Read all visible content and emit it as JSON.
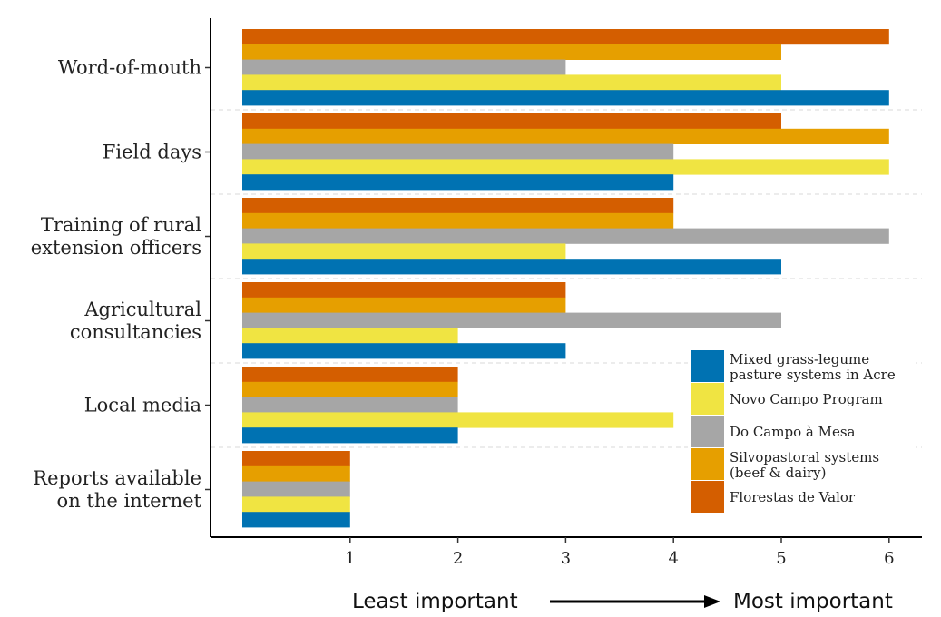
{
  "chart_data": {
    "type": "bar",
    "orientation": "horizontal",
    "categories": [
      [
        "Word-of-mouth"
      ],
      [
        "Field days"
      ],
      [
        "Training of rural",
        "extension officers"
      ],
      [
        "Agricultural",
        "consultancies"
      ],
      [
        "Local media"
      ],
      [
        "Reports available",
        "on the internet"
      ]
    ],
    "series": [
      {
        "name": [
          "Florestas de Valor"
        ],
        "color": "#D45E00",
        "values": [
          6,
          5,
          4,
          3,
          2,
          1
        ]
      },
      {
        "name": [
          "Silvopastoral systems",
          "(beef & dairy)"
        ],
        "color": "#E69F00",
        "values": [
          5,
          6,
          4,
          3,
          2,
          1
        ]
      },
      {
        "name": [
          "Do Campo à Mesa"
        ],
        "color": "#A6A6A6",
        "values": [
          3,
          4,
          6,
          5,
          2,
          1
        ]
      },
      {
        "name": [
          "Novo Campo Program"
        ],
        "color": "#F0E442",
        "values": [
          5,
          6,
          3,
          2,
          4,
          1
        ]
      },
      {
        "name": [
          "Mixed grass-legume",
          "pasture systems in Acre"
        ],
        "color": "#0072B2",
        "values": [
          6,
          4,
          5,
          3,
          2,
          1
        ]
      }
    ],
    "xticks": [
      "1",
      "2",
      "3",
      "4",
      "5",
      "6"
    ],
    "xlim": [
      0,
      6
    ],
    "legend_order": [
      4,
      3,
      2,
      1,
      0
    ],
    "legend_position": "bottom-right",
    "grid": "dashed separators between categories",
    "caption": {
      "left": "Least important",
      "right": "Most important"
    }
  }
}
